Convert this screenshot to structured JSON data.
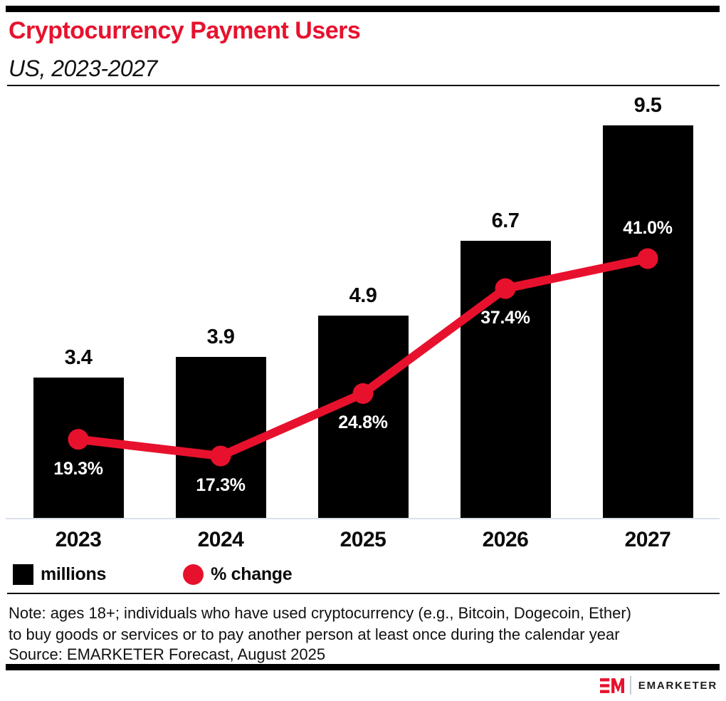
{
  "header": {
    "title": "Cryptocurrency Payment Users",
    "subtitle": "US, 2023-2027"
  },
  "chart_data": {
    "type": "bar",
    "subtype": "bar-with-line-overlay",
    "categories": [
      "2023",
      "2024",
      "2025",
      "2026",
      "2027"
    ],
    "series": [
      {
        "name": "millions",
        "type": "bar",
        "values": [
          3.4,
          3.9,
          4.9,
          6.7,
          9.5
        ],
        "labels": [
          "3.4",
          "3.9",
          "4.9",
          "6.7",
          "9.5"
        ],
        "color": "#000000"
      },
      {
        "name": "% change",
        "type": "line",
        "values": [
          19.3,
          17.3,
          24.8,
          37.4,
          41.0
        ],
        "labels": [
          "19.3%",
          "17.3%",
          "24.8%",
          "37.4%",
          "41.0%"
        ],
        "label_positions": [
          "below",
          "below",
          "below",
          "below",
          "above"
        ],
        "color": "#e8112d"
      }
    ],
    "title": "Cryptocurrency Payment Users",
    "subtitle": "US, 2023-2027",
    "xlabel": "",
    "ylabel": "",
    "ylim_bar_axis": [
      0,
      10.3
    ],
    "ylim_line_axis": [
      9.8,
      51
    ],
    "grid": false,
    "legend_position": "bottom-left",
    "value_labels_shown": true
  },
  "legend": {
    "items": [
      {
        "label": "millions",
        "swatch": "square",
        "color": "#000000"
      },
      {
        "label": "% change",
        "swatch": "circle",
        "color": "#e8112d"
      }
    ]
  },
  "footnote": {
    "note_lines": [
      "Note: ages 18+; individuals who have used cryptocurrency (e.g., Bitcoin, Dogecoin, Ether)",
      "to buy goods or services or to pay another person at least once during the calendar year"
    ],
    "source": "Source: EMARKETER Forecast, August 2025"
  },
  "footer": {
    "brand": "EMARKETER",
    "monogram": "EM"
  },
  "colors": {
    "accent_red": "#e8112d",
    "bar_black": "#000000",
    "axis_line": "#dce1ec"
  }
}
